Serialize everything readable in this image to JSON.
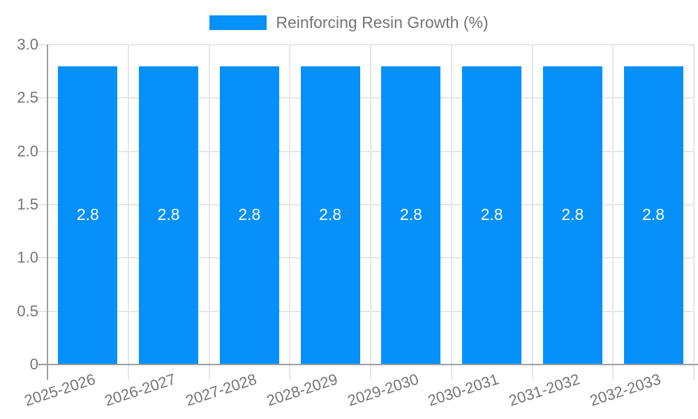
{
  "page": {
    "background": "#ffffff"
  },
  "legend": {
    "label": "Reinforcing Resin Growth (%)"
  },
  "chart_data": {
    "type": "bar",
    "title": "Reinforcing Resin Growth (%)",
    "categories": [
      "2025-2026",
      "2026-2027",
      "2027-2028",
      "2028-2029",
      "2029-2030",
      "2030-2031",
      "2031-2032",
      "2032-2033"
    ],
    "values": [
      2.8,
      2.8,
      2.8,
      2.8,
      2.8,
      2.8,
      2.8,
      2.8
    ],
    "bar_labels": [
      "2.8",
      "2.8",
      "2.8",
      "2.8",
      "2.8",
      "2.8",
      "2.8",
      "2.8"
    ],
    "xlabel": "",
    "ylabel": "",
    "ylim": [
      0,
      3.0
    ],
    "yticks": {
      "values": [
        0,
        0.5,
        1.0,
        1.5,
        2.0,
        2.5,
        3.0
      ],
      "labels": [
        "0",
        "0.5",
        "1.0",
        "1.5",
        "2.0",
        "2.5",
        "3.0"
      ]
    },
    "grid": true,
    "legend_position": "top",
    "colors": {
      "bar": "#0590fa",
      "axis_text": "#757575",
      "gridline": "#e6e6e6",
      "axis_line": "#9e9e9e",
      "value_label": "#ffffff"
    }
  }
}
